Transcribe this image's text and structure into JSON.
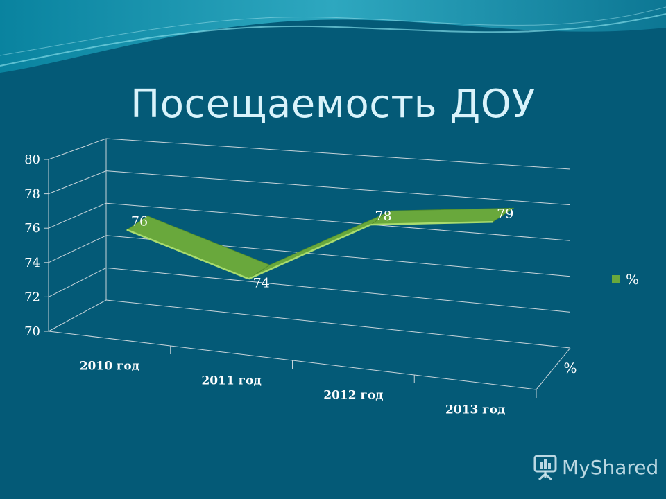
{
  "slide": {
    "title": "Посещаемость ДОУ"
  },
  "chart_data": {
    "type": "line",
    "categories": [
      "2010 год",
      "2011 год",
      "2012 год",
      "2013 год"
    ],
    "series": [
      {
        "name": "%",
        "values": [
          76,
          74,
          78,
          79
        ]
      }
    ],
    "ylim": [
      70,
      80
    ],
    "yticks": [
      "70",
      "72",
      "74",
      "76",
      "78",
      "80"
    ],
    "depth_axis_label": "%",
    "legend": {
      "position": "right"
    },
    "grid": true,
    "colors": {
      "ribbon_top": "#69a83c",
      "ribbon_front": "#a9dc6e",
      "gridline": "#c8d4da",
      "label": "#ffffff"
    }
  },
  "logo": {
    "text": "MyShared"
  }
}
